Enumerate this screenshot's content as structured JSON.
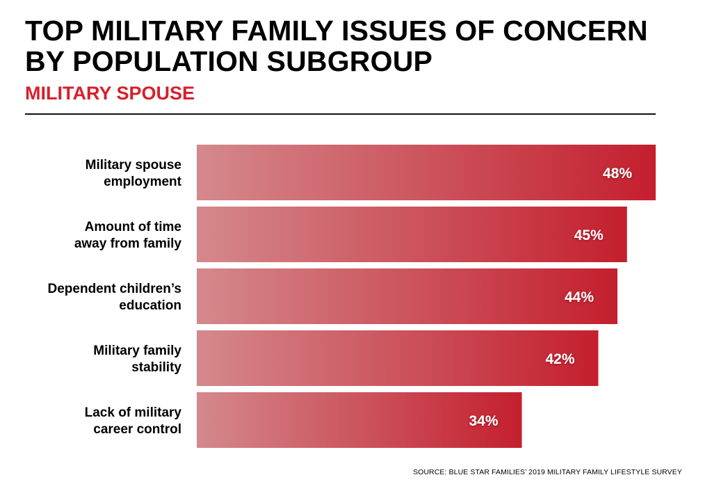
{
  "title_lines": [
    "TOP MILITARY FAMILY ISSUES OF CONCERN",
    "BY POPULATION SUBGROUP"
  ],
  "subtitle": "MILITARY SPOUSE",
  "source": "SOURCE: BLUE STAR FAMILIES’ 2019 MILITARY FAMILY LIFESTYLE SURVEY",
  "colors": {
    "bar_gradient_start": "#d4898c",
    "bar_gradient_end": "#c41f2e",
    "subtitle": "#d71f2b",
    "value_label": "#ffffff"
  },
  "chart_data": {
    "type": "bar",
    "orientation": "horizontal",
    "categories": [
      [
        "Military spouse",
        "employment"
      ],
      [
        "Amount of time",
        "away from family"
      ],
      [
        "Dependent children’s",
        "education"
      ],
      [
        "Military family",
        "stability"
      ],
      [
        "Lack of military",
        "career control"
      ]
    ],
    "values": [
      48,
      45,
      44,
      42,
      34
    ],
    "value_labels": [
      "48%",
      "45%",
      "44%",
      "42%",
      "34%"
    ],
    "unit": "%",
    "xlim": [
      0,
      48
    ],
    "grid": false,
    "legend": "none"
  }
}
